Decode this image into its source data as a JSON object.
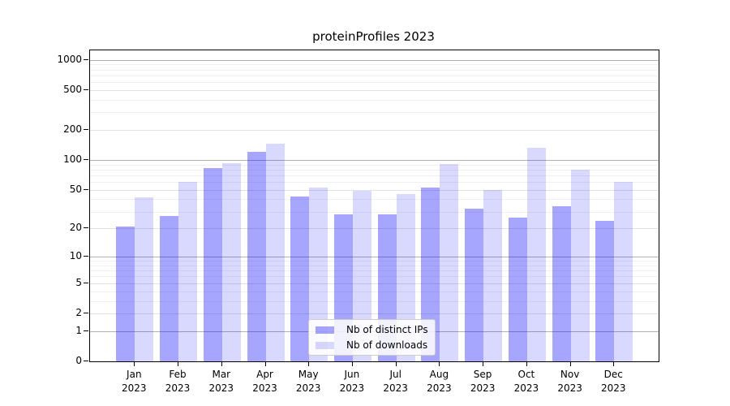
{
  "title": "proteinProfiles 2023",
  "chart_data": {
    "type": "bar",
    "categories": [
      "Jan\n2023",
      "Feb\n2023",
      "Mar\n2023",
      "Apr\n2023",
      "May\n2023",
      "Jun\n2023",
      "Jul\n2023",
      "Aug\n2023",
      "Sep\n2023",
      "Oct\n2023",
      "Nov\n2023",
      "Dec\n2023"
    ],
    "series": [
      {
        "name": "Nb of distinct IPs",
        "color": "rgba(0,0,255,0.35)",
        "values": [
          21,
          27,
          83,
          121,
          43,
          28,
          28,
          53,
          32,
          26,
          34,
          24
        ]
      },
      {
        "name": "Nb of downloads",
        "color": "rgba(0,0,255,0.15)",
        "values": [
          42,
          60,
          92,
          146,
          53,
          49,
          45,
          91,
          50,
          133,
          80,
          60
        ]
      }
    ],
    "yscale": "log1p",
    "yticks": [
      0,
      1,
      2,
      5,
      10,
      20,
      50,
      100,
      200,
      500,
      1000
    ],
    "ylim": [
      0,
      1244
    ],
    "xlabel": "",
    "ylabel": "",
    "grid": true,
    "legend_position": "lower center"
  },
  "colors": {
    "grid_major": "#b2b2b2",
    "grid_sub": "#e2e2e2",
    "grid_minor": "#f1f1f1",
    "bar_distinct_ips": "rgba(0,0,255,0.35)",
    "bar_downloads": "rgba(0,0,255,0.15)"
  }
}
